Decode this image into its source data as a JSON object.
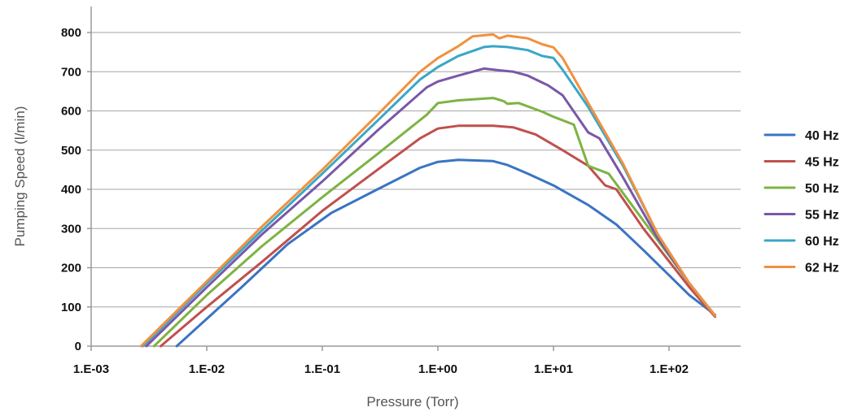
{
  "chart_data": {
    "type": "line",
    "title": "",
    "xlabel": "Pressure (Torr)",
    "ylabel": "Pumping Speed (l/min)",
    "x_scale": "log",
    "xlim": [
      0.001,
      500
    ],
    "ylim": [
      0,
      820
    ],
    "x_ticks": [
      0.001,
      0.01,
      0.1,
      1,
      10,
      100
    ],
    "x_tick_labels": [
      "1.E-03",
      "1.E-02",
      "1.E-01",
      "1.E+00",
      "1.E+01",
      "1.E+02"
    ],
    "y_ticks": [
      0,
      100,
      200,
      300,
      400,
      500,
      600,
      700,
      800
    ],
    "y_tick_labels": [
      "0",
      "100",
      "200",
      "300",
      "400",
      "500",
      "600",
      "700",
      "800"
    ],
    "grid": "horizontal",
    "legend_position": "right",
    "series": [
      {
        "name": "40 Hz",
        "color": "#3a74c2",
        "x": [
          0.0055,
          0.02,
          0.05,
          0.12,
          0.3,
          0.7,
          1.0,
          1.5,
          3.0,
          4.0,
          6.0,
          10,
          20,
          35,
          60,
          150,
          250
        ],
        "y": [
          0,
          150,
          260,
          340,
          400,
          455,
          470,
          475,
          472,
          462,
          440,
          410,
          360,
          310,
          245,
          130,
          80
        ]
      },
      {
        "name": "45 Hz",
        "color": "#c0504d",
        "x": [
          0.004,
          0.01,
          0.03,
          0.1,
          0.3,
          0.7,
          1.0,
          1.5,
          3.0,
          4.5,
          7.0,
          12,
          20,
          28,
          35,
          60,
          150,
          250
        ],
        "y": [
          0,
          100,
          215,
          345,
          450,
          530,
          555,
          562,
          562,
          558,
          540,
          500,
          460,
          410,
          400,
          300,
          150,
          75
        ]
      },
      {
        "name": "50 Hz",
        "color": "#7db343",
        "x": [
          0.0035,
          0.01,
          0.03,
          0.1,
          0.3,
          0.8,
          1.0,
          1.5,
          3.0,
          3.7,
          4.0,
          5.0,
          8.0,
          10,
          15,
          20,
          30,
          60,
          150,
          250
        ],
        "y": [
          0,
          130,
          255,
          380,
          490,
          590,
          620,
          627,
          633,
          625,
          618,
          620,
          598,
          585,
          565,
          460,
          440,
          320,
          160,
          78
        ]
      },
      {
        "name": "55 Hz",
        "color": "#7a57a8",
        "x": [
          0.003,
          0.01,
          0.03,
          0.1,
          0.3,
          0.8,
          1.0,
          1.5,
          2.5,
          3.5,
          4.5,
          6.0,
          9.0,
          12,
          20,
          25,
          40,
          80,
          150,
          250
        ],
        "y": [
          0,
          150,
          285,
          420,
          550,
          660,
          675,
          690,
          708,
          703,
          700,
          690,
          665,
          640,
          545,
          530,
          430,
          275,
          160,
          78
        ]
      },
      {
        "name": "60 Hz",
        "color": "#3aa7c7",
        "x": [
          0.0028,
          0.01,
          0.03,
          0.1,
          0.3,
          0.7,
          1.0,
          1.5,
          2.5,
          3.0,
          4.0,
          6.0,
          8.0,
          10,
          12,
          20,
          40,
          80,
          150,
          250
        ],
        "y": [
          0,
          160,
          295,
          440,
          575,
          680,
          712,
          740,
          763,
          765,
          763,
          755,
          740,
          735,
          705,
          610,
          460,
          285,
          160,
          78
        ]
      },
      {
        "name": "62 Hz",
        "color": "#f0913f",
        "x": [
          0.0027,
          0.01,
          0.03,
          0.1,
          0.3,
          0.7,
          1.0,
          1.5,
          2.0,
          3.0,
          3.4,
          4.0,
          6.0,
          8.0,
          10,
          12,
          20,
          40,
          80,
          150,
          250
        ],
        "y": [
          0,
          165,
          305,
          450,
          590,
          700,
          735,
          765,
          790,
          795,
          785,
          792,
          785,
          770,
          762,
          735,
          620,
          465,
          285,
          160,
          78
        ]
      }
    ]
  }
}
